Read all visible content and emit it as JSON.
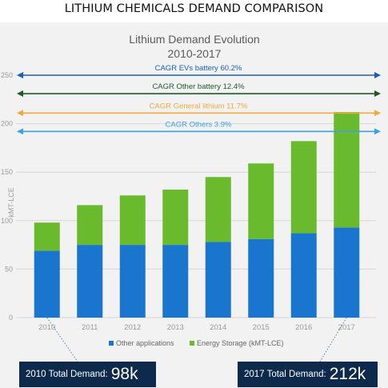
{
  "page_title": "LITHIUM CHEMICALS DEMAND COMPARISON",
  "chart_data": {
    "type": "bar",
    "stacked": true,
    "title_lines": [
      "Lithium Demand Evolution",
      "2010-2017"
    ],
    "ylabel": "kMT-LCE",
    "ylim": [
      0,
      250
    ],
    "yticks": [
      0,
      50,
      100,
      150,
      200,
      250
    ],
    "grid": true,
    "legend_position": "bottom",
    "categories": [
      "2010",
      "2011",
      "2012",
      "2013",
      "2014",
      "2015",
      "2016",
      "2017"
    ],
    "series": [
      {
        "name": "Other applications",
        "color": "#1a75cf",
        "values": [
          69,
          75,
          75,
          75,
          78,
          81,
          87,
          93
        ]
      },
      {
        "name": "Energy Storage (kMT-LCE)",
        "color": "#6aba2e",
        "values": [
          29,
          41,
          51,
          57,
          67,
          78,
          95,
          119
        ]
      }
    ],
    "cagr_annotations": [
      {
        "label": "CAGR EVs battery 60.2%",
        "y": 250,
        "color": "#1a5fb4"
      },
      {
        "label": "CAGR Other battery 12.4%",
        "y": 231,
        "color": "#1f5b2a"
      },
      {
        "label": "CAGR General lithium 11.7%",
        "y": 211,
        "color": "#f2a93b"
      },
      {
        "label": "CAGR Others 3.9%",
        "y": 192,
        "color": "#3da0e6"
      }
    ]
  },
  "callouts": {
    "left": {
      "label": "2010 Total Demand:",
      "value": "98k"
    },
    "right": {
      "label": "2017 Total Demand:",
      "value": "212k"
    }
  }
}
